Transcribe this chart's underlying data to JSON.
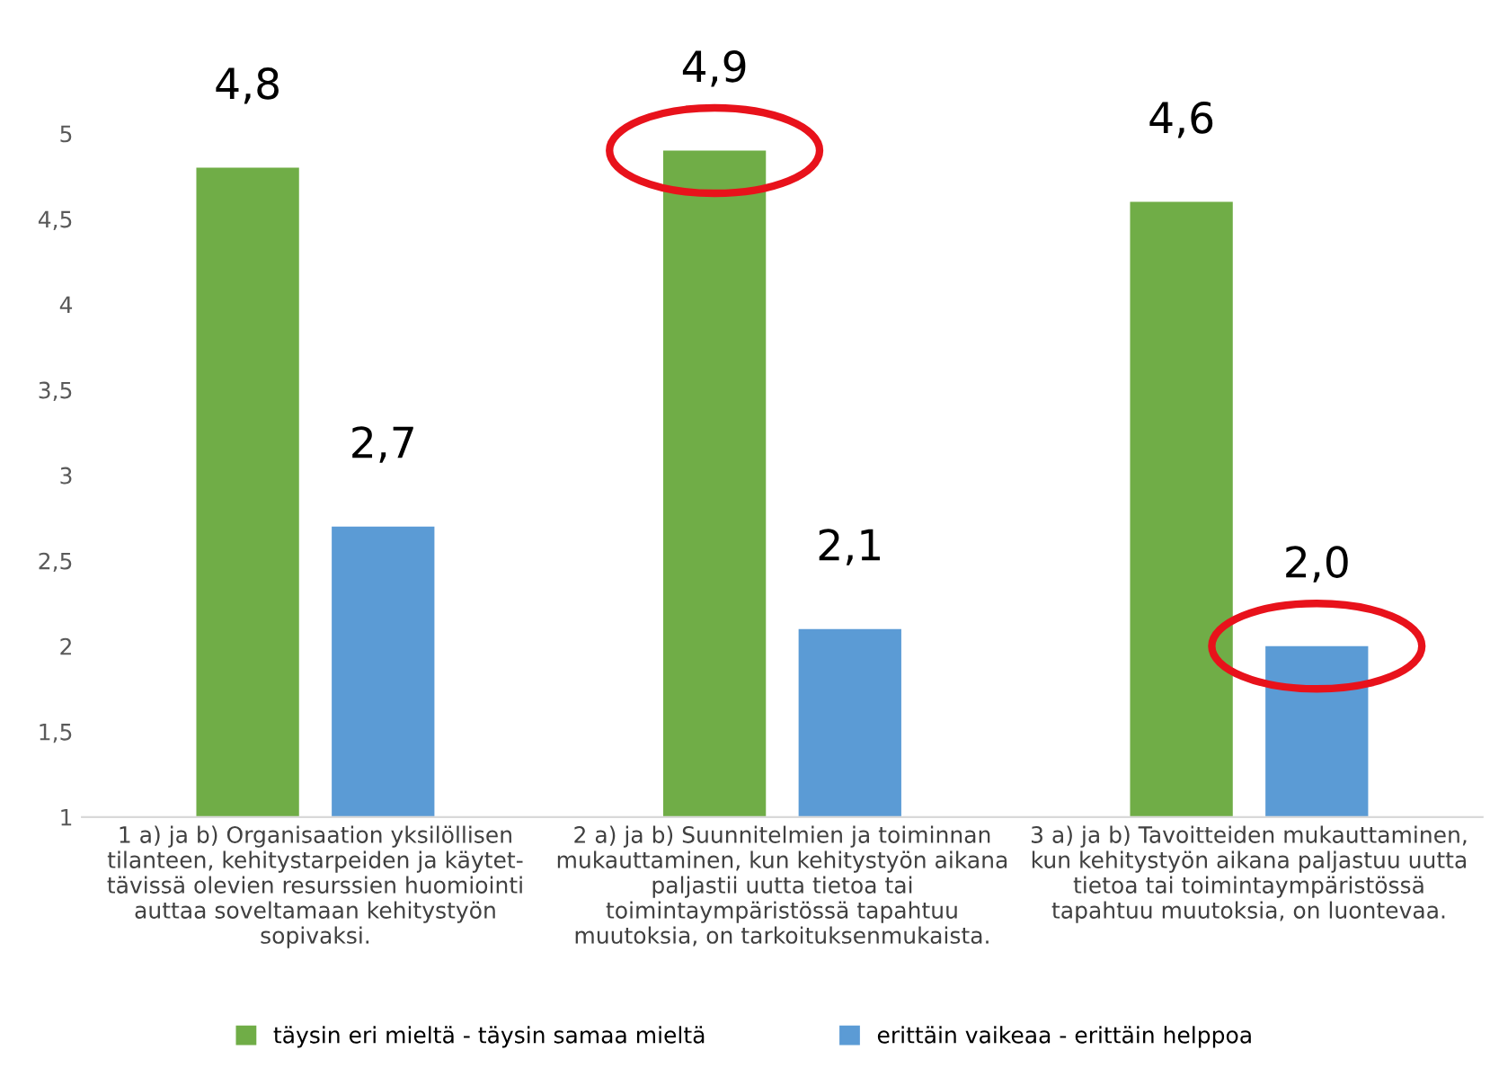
{
  "chart_data": {
    "type": "bar",
    "categories": [
      "1 a) ja b) Organisaation yksilöllisen\ntilanteen, kehitystarpeiden ja käytet-\ntävissä olevien resurssien huomiointi\nauttaa soveltamaan kehitystyön\nsopivaksi.",
      "2 a) ja b) Suunnitelmien ja toiminnan\nmukauttaminen, kun kehitystyön aikana\npaljastii uutta tietoa tai\ntoimintaympäristössä tapahtuu\nmuutoksia, on tarkoituksenmukaista.",
      "3 a) ja b) Tavoitteiden mukauttaminen,\nkun kehitystyön aikana paljastuu uutta\ntietoa tai toimintaympäristössä\ntapahtuu muutoksia, on luontevaa."
    ],
    "series": [
      {
        "name": "täysin eri mieltä - täysin samaa mieltä",
        "color": "#70ad47",
        "values": [
          4.8,
          4.9,
          4.6
        ]
      },
      {
        "name": "erittäin vaikeaa - erittäin helppoa",
        "color": "#5b9bd5",
        "values": [
          2.7,
          2.1,
          2.0
        ]
      }
    ],
    "value_labels": [
      [
        "4,8",
        "4,9",
        "4,6"
      ],
      [
        "2,7",
        "2,1",
        "2,0"
      ]
    ],
    "ylim": [
      1,
      5
    ],
    "yticks": [
      1,
      {
        "value": 1.5,
        "label": "1,5"
      },
      2,
      {
        "value": 2.5,
        "label": "2,5"
      },
      3,
      {
        "value": 3.5,
        "label": "3,5"
      },
      4,
      {
        "value": 4.5,
        "label": "4,5"
      },
      5
    ],
    "grid": false,
    "legend": "bottom"
  }
}
